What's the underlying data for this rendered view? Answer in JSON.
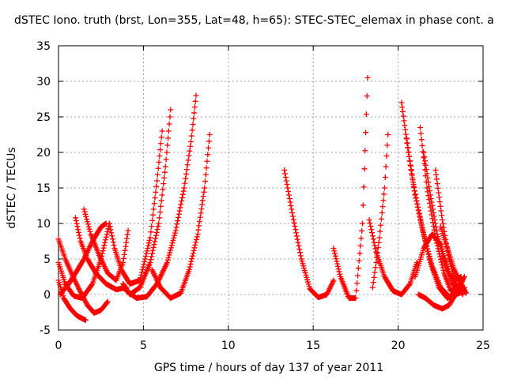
{
  "chart_data": {
    "type": "scatter",
    "title": "dSTEC Iono. truth (brst, Lon=355, Lat=48, h=65): STEC-STEC_elemax in phase cont. a",
    "xlabel": "GPS time / hours of day 137 of year 2011",
    "ylabel": "dSTEC  / TECUs",
    "xlim": [
      0,
      25
    ],
    "ylim": [
      -5,
      35
    ],
    "xticks": [
      0,
      5,
      10,
      15,
      20,
      25
    ],
    "yticks": [
      -5,
      0,
      5,
      10,
      15,
      20,
      25,
      30,
      35
    ],
    "grid": true,
    "marker": "+",
    "color": "#ff0000",
    "series": [
      {
        "x": [
          0.0,
          0.3,
          0.7,
          1.1,
          1.5,
          1.6
        ],
        "y": [
          2.0,
          -0.5,
          -2.0,
          -3.0,
          -3.5,
          -3.6
        ]
      },
      {
        "x": [
          0.0,
          0.4,
          0.9,
          1.4,
          2.0,
          2.5,
          3.0
        ],
        "y": [
          4.5,
          1.5,
          -0.2,
          -0.5,
          1.5,
          5.0,
          10.0
        ]
      },
      {
        "x": [
          0.0,
          0.4,
          0.8,
          1.2,
          1.7,
          2.1,
          2.5,
          2.9
        ],
        "y": [
          7.8,
          5.0,
          2.8,
          0.8,
          -1.5,
          -2.6,
          -2.2,
          -1.0
        ]
      },
      {
        "x": [
          0.1,
          0.6,
          1.0,
          1.5,
          2.0,
          2.5,
          2.8
        ],
        "y": [
          0.0,
          1.5,
          3.0,
          5.0,
          7.5,
          9.5,
          10.0
        ]
      },
      {
        "x": [
          1.0,
          1.3,
          1.7,
          2.2,
          2.8,
          3.4,
          4.0
        ],
        "y": [
          10.8,
          7.5,
          5.0,
          3.0,
          1.5,
          0.7,
          1.0
        ]
      },
      {
        "x": [
          1.5,
          1.9,
          2.4,
          2.9,
          3.4,
          3.8,
          4.1
        ],
        "y": [
          12.0,
          8.5,
          5.5,
          3.0,
          2.0,
          4.5,
          9.0
        ]
      },
      {
        "x": [
          3.0,
          3.3,
          3.7,
          4.2,
          4.8,
          5.4,
          5.8,
          6.1
        ],
        "y": [
          10.0,
          6.5,
          3.5,
          1.5,
          2.0,
          8.0,
          16.0,
          23.0
        ]
      },
      {
        "x": [
          3.8,
          4.2,
          4.8,
          5.4,
          5.9,
          6.3,
          6.6
        ],
        "y": [
          1.5,
          0.0,
          1.0,
          4.5,
          10.0,
          18.0,
          26.0
        ]
      },
      {
        "x": [
          4.0,
          4.6,
          5.2,
          5.8,
          6.4,
          6.9,
          7.4,
          7.8,
          8.1
        ],
        "y": [
          0.5,
          -0.5,
          -0.3,
          1.5,
          4.5,
          9.0,
          15.0,
          21.5,
          28.0
        ]
      },
      {
        "x": [
          5.5,
          6.0,
          6.6,
          7.2,
          7.7,
          8.2,
          8.6,
          8.9
        ],
        "y": [
          3.5,
          1.0,
          -0.5,
          0.2,
          3.5,
          8.5,
          15.0,
          22.5
        ]
      },
      {
        "x": [
          13.3,
          13.8,
          14.3,
          14.8,
          15.3,
          15.8,
          16.2
        ],
        "y": [
          17.5,
          11.0,
          5.0,
          0.8,
          -0.4,
          0.0,
          2.0
        ]
      },
      {
        "x": [
          16.2,
          16.6,
          17.1,
          17.5,
          17.9,
          18.2
        ],
        "y": [
          6.5,
          2.5,
          -0.5,
          -0.5,
          10.0,
          30.5
        ]
      },
      {
        "x": [
          18.3,
          18.7,
          19.2,
          19.7,
          20.2,
          20.7,
          21.1
        ],
        "y": [
          10.5,
          6.0,
          2.5,
          0.5,
          0.0,
          1.5,
          4.5
        ]
      },
      {
        "x": [
          18.5,
          18.9,
          19.2,
          19.4
        ],
        "y": [
          1.0,
          8.0,
          15.0,
          22.5
        ]
      },
      {
        "x": [
          20.2,
          20.6,
          21.0,
          21.5,
          22.0,
          22.5,
          23.0,
          23.5,
          23.8
        ],
        "y": [
          27.0,
          20.0,
          14.0,
          8.5,
          4.0,
          1.0,
          -0.3,
          0.2,
          2.0
        ]
      },
      {
        "x": [
          20.5,
          20.9,
          21.4,
          21.9,
          22.4,
          22.9,
          23.4,
          23.9
        ],
        "y": [
          22.0,
          15.5,
          9.5,
          4.5,
          1.0,
          -0.5,
          0.0,
          0.5
        ]
      },
      {
        "x": [
          21.3,
          21.7,
          22.2,
          22.7,
          23.1,
          23.5,
          23.9
        ],
        "y": [
          23.5,
          15.0,
          8.0,
          3.0,
          0.5,
          1.0,
          2.5
        ]
      },
      {
        "x": [
          21.5,
          21.9,
          22.3,
          22.8,
          23.2,
          23.6,
          23.9
        ],
        "y": [
          20.0,
          14.0,
          8.5,
          4.0,
          1.5,
          0.5,
          1.0
        ]
      },
      {
        "x": [
          22.2,
          22.6,
          23.0,
          23.4,
          23.8
        ],
        "y": [
          17.5,
          10.5,
          5.0,
          1.5,
          0.0
        ]
      },
      {
        "x": [
          21.0,
          21.5,
          22.0,
          22.5,
          23.0,
          23.3,
          23.7
        ],
        "y": [
          2.5,
          6.5,
          8.5,
          7.0,
          3.0,
          2.0,
          2.5
        ]
      },
      {
        "x": [
          21.2,
          21.6,
          22.1,
          22.6,
          23.0,
          23.5
        ],
        "y": [
          0.0,
          -0.5,
          -1.5,
          -2.0,
          -1.5,
          0.5
        ]
      },
      {
        "x": [
          22.5,
          22.9,
          23.3,
          23.7,
          24.0
        ],
        "y": [
          9.5,
          6.5,
          3.5,
          1.5,
          0.2
        ]
      }
    ]
  }
}
